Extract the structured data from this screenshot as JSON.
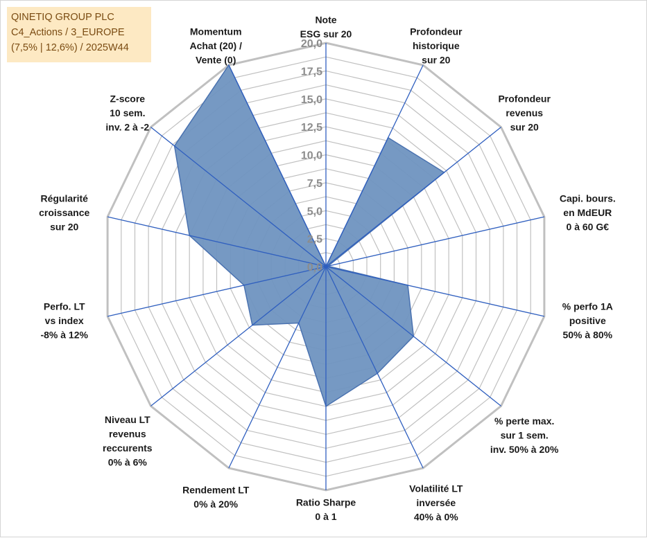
{
  "header": {
    "company": "QINETIQ GROUP PLC",
    "category": "C4_Actions / 3_EUROPE",
    "meta": "(7,5% | 12,6%) / 2025W44"
  },
  "colors": {
    "fill": "#6f93c0",
    "stroke": "#4a72b0",
    "axis": "#2f5fbf",
    "grid": "#c0c0c0",
    "info_bg": "#fde9c3",
    "info_text": "#7a4b12"
  },
  "chart_data": {
    "type": "radar",
    "rmin": 0,
    "rmax": 20,
    "ticks": [
      "0,0",
      "2,5",
      "5,0",
      "7,5",
      "10,0",
      "12,5",
      "15,0",
      "17,5",
      "20,0"
    ],
    "axes": [
      {
        "label": [
          "Note",
          "ESG sur 20"
        ],
        "value": 0
      },
      {
        "label": [
          "Profondeur",
          "historique",
          "sur 20"
        ],
        "value": 12.8
      },
      {
        "label": [
          "Profondeur",
          "revenus",
          "sur 20"
        ],
        "value": 13.5
      },
      {
        "label": [
          "Capi. bours.",
          "en MdEUR",
          "0 à 60 G€"
        ],
        "value": 0.2
      },
      {
        "label": [
          "% perfo 1A",
          "positive",
          "50% à 80%"
        ],
        "value": 7.5
      },
      {
        "label": [
          "% perte max.",
          "sur 1 sem.",
          "inv. 50% à 20%"
        ],
        "value": 10.0
      },
      {
        "label": [
          "Volatilité LT",
          "inversée",
          "40% à 0%"
        ],
        "value": 10.6
      },
      {
        "label": [
          "Ratio Sharpe",
          "0 à 1"
        ],
        "value": 12.5
      },
      {
        "label": [
          "Rendement LT",
          "0% à 20%"
        ],
        "value": 5.6
      },
      {
        "label": [
          "Niveau LT",
          "revenus",
          "reccurents",
          "0% à 6%"
        ],
        "value": 8.4
      },
      {
        "label": [
          "Perfo. LT",
          "vs index",
          "-8% à 12%"
        ],
        "value": 7.5
      },
      {
        "label": [
          "Régularité",
          "croissance",
          "sur 20"
        ],
        "value": 12.5
      },
      {
        "label": [
          "Z-score",
          "10 sem.",
          "inv. 2 à -2"
        ],
        "value": 17.3
      },
      {
        "label": [
          "Momentum",
          "Achat (20) /",
          "Vente (0)"
        ],
        "value": 20
      }
    ]
  }
}
